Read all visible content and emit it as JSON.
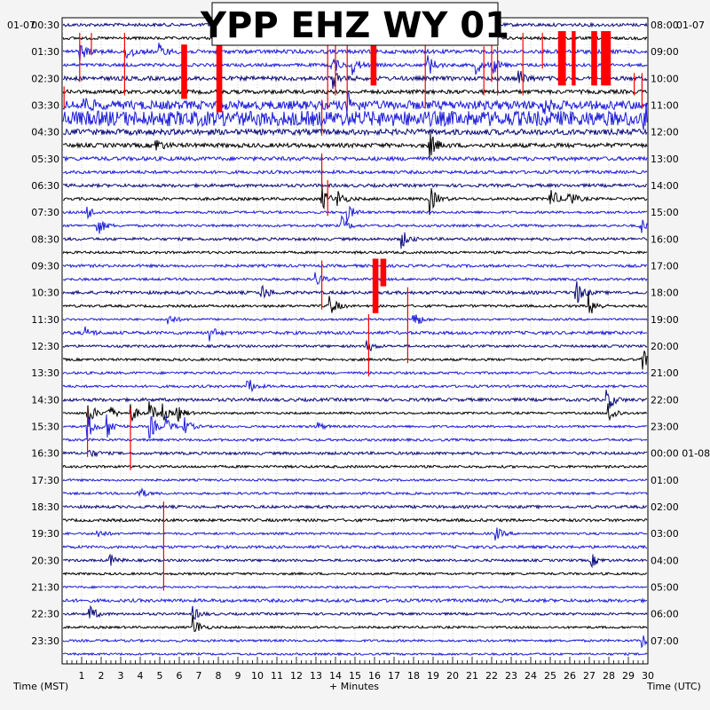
{
  "title": "YPP EHZ WY 01",
  "date_left": "01-07",
  "date_right": "01-07",
  "left_times": [
    "00:30",
    "01:30",
    "02:30",
    "03:30",
    "04:30",
    "05:30",
    "06:30",
    "07:30",
    "08:30",
    "09:30",
    "10:30",
    "11:30",
    "12:30",
    "13:30",
    "14:30",
    "15:30",
    "16:30",
    "17:30",
    "18:30",
    "19:30",
    "20:30",
    "21:30",
    "22:30",
    "23:30"
  ],
  "right_times": [
    "08:00",
    "09:00",
    "10:00",
    "11:00",
    "12:00",
    "13:00",
    "14:00",
    "15:00",
    "16:00",
    "17:00",
    "18:00",
    "19:00",
    "20:00",
    "21:00",
    "22:00",
    "23:00",
    "00:00 01-08",
    "01:00",
    "02:00",
    "03:00",
    "04:00",
    "05:00",
    "06:00",
    "07:00"
  ],
  "x_ticks": [
    "1",
    "2",
    "3",
    "4",
    "5",
    "6",
    "7",
    "8",
    "9",
    "10",
    "11",
    "12",
    "13",
    "14",
    "15",
    "16",
    "17",
    "18",
    "19",
    "20",
    "21",
    "22",
    "23",
    "24",
    "25",
    "26",
    "27",
    "28",
    "29",
    "30"
  ],
  "xlabel_left": "Time (MST)",
  "xlabel_center": "+ Minutes",
  "xlabel_right": "Time (UTC)",
  "colors": {
    "trace_dark": "#0a0a78",
    "trace_black": "#000000",
    "trace_blue": "#1c1cd8",
    "clip": "#ff0000",
    "grid": "#9a9a9a",
    "background": "#ffffff"
  },
  "chart_data": {
    "type": "helicorder",
    "station": "YPP",
    "channel": "EHZ",
    "network": "WY",
    "location": "01",
    "x_range_minutes": [
      0,
      30
    ],
    "rows": 48,
    "minutes_per_row": 30,
    "color_cycle": [
      "dark",
      "black",
      "blue",
      "blue"
    ],
    "noise_level": [
      1.8,
      1.6,
      2.2,
      1.8,
      2.4,
      2.2,
      5,
      8.5,
      3.2,
      2.4,
      2.2,
      1.8,
      1.8,
      1.6,
      1.4,
      1.4,
      1.6,
      1.4,
      1.6,
      1.4,
      1.8,
      1.4,
      1.2,
      1.8,
      1.4,
      1.4,
      1.4,
      1.4,
      1.8,
      1.2,
      1.3,
      1.4,
      1.6,
      1.4,
      1.2,
      1.3,
      1.6,
      1.6,
      1.3,
      1.6,
      1.4,
      1.3,
      1.2,
      1.8,
      1.4,
      1.3,
      1.3,
      1.2
    ],
    "clipped_events": [
      {
        "row": 2,
        "x": [
          6.1,
          6.4
        ],
        "rows_spanned": 4
      },
      {
        "row": 2,
        "x": [
          7.9,
          8.2
        ],
        "rows_spanned": 5
      },
      {
        "row": 1,
        "x": [
          15.8,
          16.1
        ],
        "rows_spanned": 4
      },
      {
        "row": 1,
        "x": [
          25.4,
          25.8
        ],
        "rows_spanned": 4
      },
      {
        "row": 1,
        "x": [
          26.1,
          26.3
        ],
        "rows_spanned": 4
      },
      {
        "row": 1,
        "x": [
          27.1,
          27.4
        ],
        "rows_spanned": 4
      },
      {
        "row": 1,
        "x": [
          27.6,
          28.1
        ],
        "rows_spanned": 4
      },
      {
        "row": 18,
        "x": [
          15.9,
          16.2
        ],
        "rows_spanned": 4
      },
      {
        "row": 18,
        "x": [
          16.3,
          16.6
        ],
        "rows_spanned": 2
      }
    ],
    "events": [
      {
        "row": 2,
        "x": 0.9,
        "amp": 10
      },
      {
        "row": 2,
        "x": 3.3,
        "amp": 12
      },
      {
        "row": 2,
        "x": 5.0,
        "amp": 8
      },
      {
        "row": 3,
        "x": 13.8,
        "amp": 12
      },
      {
        "row": 3,
        "x": 14.9,
        "amp": 10
      },
      {
        "row": 3,
        "x": 18.7,
        "amp": 14
      },
      {
        "row": 3,
        "x": 21.2,
        "amp": 10
      },
      {
        "row": 3,
        "x": 22.0,
        "amp": 12
      },
      {
        "row": 4,
        "x": 13.9,
        "amp": 10
      },
      {
        "row": 4,
        "x": 23.4,
        "amp": 10
      },
      {
        "row": 6,
        "x": 1.1,
        "amp": 8
      },
      {
        "row": 6,
        "x": 14.6,
        "amp": 12
      },
      {
        "row": 6,
        "x": 24.6,
        "amp": 10
      },
      {
        "row": 7,
        "x": 29.8,
        "amp": 14
      },
      {
        "row": 9,
        "x": 4.8,
        "amp": 8
      },
      {
        "row": 9,
        "x": 18.8,
        "amp": 16
      },
      {
        "row": 13,
        "x": 13.3,
        "amp": 14
      },
      {
        "row": 13,
        "x": 14.1,
        "amp": 10
      },
      {
        "row": 13,
        "x": 18.8,
        "amp": 18
      },
      {
        "row": 13,
        "x": 25.0,
        "amp": 14
      },
      {
        "row": 13,
        "x": 25.9,
        "amp": 12
      },
      {
        "row": 14,
        "x": 1.3,
        "amp": 8
      },
      {
        "row": 14,
        "x": 14.6,
        "amp": 10
      },
      {
        "row": 15,
        "x": 1.8,
        "amp": 12
      },
      {
        "row": 15,
        "x": 14.3,
        "amp": 10
      },
      {
        "row": 15,
        "x": 29.6,
        "amp": 10
      },
      {
        "row": 16,
        "x": 17.4,
        "amp": 10
      },
      {
        "row": 19,
        "x": 13.0,
        "amp": 8
      },
      {
        "row": 20,
        "x": 10.2,
        "amp": 10
      },
      {
        "row": 20,
        "x": 26.3,
        "amp": 16
      },
      {
        "row": 21,
        "x": 13.7,
        "amp": 14
      },
      {
        "row": 21,
        "x": 27.0,
        "amp": 14
      },
      {
        "row": 22,
        "x": 5.4,
        "amp": 8
      },
      {
        "row": 22,
        "x": 18.0,
        "amp": 12
      },
      {
        "row": 23,
        "x": 1.2,
        "amp": 6
      },
      {
        "row": 23,
        "x": 7.5,
        "amp": 10
      },
      {
        "row": 24,
        "x": 15.6,
        "amp": 8
      },
      {
        "row": 25,
        "x": 29.7,
        "amp": 14
      },
      {
        "row": 27,
        "x": 9.5,
        "amp": 10
      },
      {
        "row": 28,
        "x": 27.9,
        "amp": 14
      },
      {
        "row": 29,
        "x": 1.3,
        "amp": 16
      },
      {
        "row": 29,
        "x": 2.3,
        "amp": 14
      },
      {
        "row": 29,
        "x": 3.5,
        "amp": 12
      },
      {
        "row": 29,
        "x": 4.5,
        "amp": 12
      },
      {
        "row": 29,
        "x": 5.1,
        "amp": 10
      },
      {
        "row": 29,
        "x": 5.9,
        "amp": 10
      },
      {
        "row": 29,
        "x": 28.0,
        "amp": 14
      },
      {
        "row": 30,
        "x": 1.3,
        "amp": 16
      },
      {
        "row": 30,
        "x": 2.3,
        "amp": 14
      },
      {
        "row": 30,
        "x": 4.5,
        "amp": 14
      },
      {
        "row": 30,
        "x": 5.3,
        "amp": 10
      },
      {
        "row": 30,
        "x": 6.2,
        "amp": 12
      },
      {
        "row": 30,
        "x": 13.0,
        "amp": 6
      },
      {
        "row": 32,
        "x": 1.4,
        "amp": 6
      },
      {
        "row": 35,
        "x": 3.9,
        "amp": 8
      },
      {
        "row": 38,
        "x": 22.2,
        "amp": 8
      },
      {
        "row": 38,
        "x": 1.8,
        "amp": 6
      },
      {
        "row": 40,
        "x": 2.4,
        "amp": 8
      },
      {
        "row": 40,
        "x": 27.1,
        "amp": 8
      },
      {
        "row": 44,
        "x": 1.4,
        "amp": 10
      },
      {
        "row": 44,
        "x": 6.7,
        "amp": 8
      },
      {
        "row": 45,
        "x": 6.7,
        "amp": 14
      },
      {
        "row": 46,
        "x": 29.7,
        "amp": 8
      }
    ],
    "red_spikes": [
      {
        "row": 1,
        "x": 0.9,
        "top_row": 1,
        "bottom_row": 4
      },
      {
        "row": 1,
        "x": 1.5,
        "top_row": 1,
        "bottom_row": 2
      },
      {
        "row": 1,
        "x": 3.2,
        "top_row": 1,
        "bottom_row": 5
      },
      {
        "row": 1,
        "x": 13.6,
        "top_row": 1,
        "bottom_row": 6
      },
      {
        "row": 1,
        "x": 14.0,
        "top_row": 1,
        "bottom_row": 5
      },
      {
        "row": 1,
        "x": 14.6,
        "top_row": 1,
        "bottom_row": 6
      },
      {
        "row": 1,
        "x": 18.6,
        "top_row": 1,
        "bottom_row": 6
      },
      {
        "row": 1,
        "x": 22.0,
        "top_row": 1,
        "bottom_row": 4
      },
      {
        "row": 1,
        "x": 23.6,
        "top_row": 1,
        "bottom_row": 5
      },
      {
        "row": 1,
        "x": 24.6,
        "top_row": 1,
        "bottom_row": 3
      },
      {
        "row": 2,
        "x": 21.6,
        "top_row": 2,
        "bottom_row": 5
      },
      {
        "row": 2,
        "x": 22.3,
        "top_row": 2,
        "bottom_row": 5
      },
      {
        "row": 4,
        "x": 29.3,
        "top_row": 4,
        "bottom_row": 5
      },
      {
        "row": 4,
        "x": 29.7,
        "top_row": 4,
        "bottom_row": 6
      },
      {
        "row": 5,
        "x": 0.1,
        "top_row": 5,
        "bottom_row": 6
      },
      {
        "row": 6,
        "x": 13.3,
        "top_row": 6,
        "bottom_row": 8
      },
      {
        "row": 10,
        "x": 13.3,
        "top_row": 10,
        "bottom_row": 12
      },
      {
        "row": 12,
        "x": 13.6,
        "top_row": 12,
        "bottom_row": 14
      },
      {
        "row": 18,
        "x": 13.3,
        "top_row": 18,
        "bottom_row": 21
      },
      {
        "row": 20,
        "x": 17.7,
        "top_row": 20,
        "bottom_row": 25
      },
      {
        "row": 22,
        "x": 15.7,
        "top_row": 22,
        "bottom_row": 26
      },
      {
        "row": 29,
        "x": 1.3,
        "top_row": 29,
        "bottom_row": 32
      },
      {
        "row": 29,
        "x": 3.5,
        "top_row": 29,
        "bottom_row": 33
      },
      {
        "row": 36,
        "x": 5.2,
        "top_row": 36,
        "bottom_row": 42
      }
    ]
  }
}
